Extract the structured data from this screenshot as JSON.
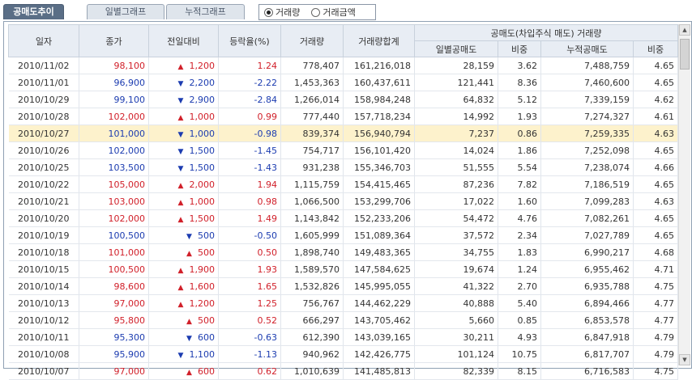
{
  "tabs": [
    {
      "label": "공매도추이",
      "active": true
    },
    {
      "label": "일별그래프",
      "active": false
    },
    {
      "label": "누적그래프",
      "active": false
    }
  ],
  "radio": [
    {
      "label": "거래량",
      "checked": true
    },
    {
      "label": "거래금액",
      "checked": false
    }
  ],
  "headers": {
    "date": "일자",
    "close": "종가",
    "change": "전일대비",
    "rate": "등락율(%)",
    "volume": "거래량",
    "volume_sum": "거래량합계",
    "short_group": "공매도(차입주식 매도) 거래량",
    "daily_short": "일별공매도",
    "ratio1": "비중",
    "cum_short": "누적공매도",
    "ratio2": "비중"
  },
  "colors": {
    "up": "#d1202a",
    "down": "#1c3cb0",
    "selected_row": "#fdf2cc",
    "header_bg": "#e8edf4"
  },
  "rows": [
    {
      "date": "2010/11/02",
      "close": "98,100",
      "dir": "up",
      "change": "1,200",
      "rate": "1.24",
      "volume": "778,407",
      "volume_sum": "161,216,018",
      "daily_short": "28,159",
      "ratio1": "3.62",
      "cum_short": "7,488,759",
      "ratio2": "4.65"
    },
    {
      "date": "2010/11/01",
      "close": "96,900",
      "dir": "down",
      "change": "2,200",
      "rate": "-2.22",
      "volume": "1,453,363",
      "volume_sum": "160,437,611",
      "daily_short": "121,441",
      "ratio1": "8.36",
      "cum_short": "7,460,600",
      "ratio2": "4.65"
    },
    {
      "date": "2010/10/29",
      "close": "99,100",
      "dir": "down",
      "change": "2,900",
      "rate": "-2.84",
      "volume": "1,266,014",
      "volume_sum": "158,984,248",
      "daily_short": "64,832",
      "ratio1": "5.12",
      "cum_short": "7,339,159",
      "ratio2": "4.62"
    },
    {
      "date": "2010/10/28",
      "close": "102,000",
      "dir": "up",
      "change": "1,000",
      "rate": "0.99",
      "volume": "777,440",
      "volume_sum": "157,718,234",
      "daily_short": "14,992",
      "ratio1": "1.93",
      "cum_short": "7,274,327",
      "ratio2": "4.61"
    },
    {
      "date": "2010/10/27",
      "close": "101,000",
      "dir": "down",
      "change": "1,000",
      "rate": "-0.98",
      "volume": "839,374",
      "volume_sum": "156,940,794",
      "daily_short": "7,237",
      "ratio1": "0.86",
      "cum_short": "7,259,335",
      "ratio2": "4.63",
      "selected": true
    },
    {
      "date": "2010/10/26",
      "close": "102,000",
      "dir": "down",
      "change": "1,500",
      "rate": "-1.45",
      "volume": "754,717",
      "volume_sum": "156,101,420",
      "daily_short": "14,024",
      "ratio1": "1.86",
      "cum_short": "7,252,098",
      "ratio2": "4.65"
    },
    {
      "date": "2010/10/25",
      "close": "103,500",
      "dir": "down",
      "change": "1,500",
      "rate": "-1.43",
      "volume": "931,238",
      "volume_sum": "155,346,703",
      "daily_short": "51,555",
      "ratio1": "5.54",
      "cum_short": "7,238,074",
      "ratio2": "4.66"
    },
    {
      "date": "2010/10/22",
      "close": "105,000",
      "dir": "up",
      "change": "2,000",
      "rate": "1.94",
      "volume": "1,115,759",
      "volume_sum": "154,415,465",
      "daily_short": "87,236",
      "ratio1": "7.82",
      "cum_short": "7,186,519",
      "ratio2": "4.65"
    },
    {
      "date": "2010/10/21",
      "close": "103,000",
      "dir": "up",
      "change": "1,000",
      "rate": "0.98",
      "volume": "1,066,500",
      "volume_sum": "153,299,706",
      "daily_short": "17,022",
      "ratio1": "1.60",
      "cum_short": "7,099,283",
      "ratio2": "4.63"
    },
    {
      "date": "2010/10/20",
      "close": "102,000",
      "dir": "up",
      "change": "1,500",
      "rate": "1.49",
      "volume": "1,143,842",
      "volume_sum": "152,233,206",
      "daily_short": "54,472",
      "ratio1": "4.76",
      "cum_short": "7,082,261",
      "ratio2": "4.65"
    },
    {
      "date": "2010/10/19",
      "close": "100,500",
      "dir": "down",
      "change": "500",
      "rate": "-0.50",
      "volume": "1,605,999",
      "volume_sum": "151,089,364",
      "daily_short": "37,572",
      "ratio1": "2.34",
      "cum_short": "7,027,789",
      "ratio2": "4.65"
    },
    {
      "date": "2010/10/18",
      "close": "101,000",
      "dir": "up",
      "change": "500",
      "rate": "0.50",
      "volume": "1,898,740",
      "volume_sum": "149,483,365",
      "daily_short": "34,755",
      "ratio1": "1.83",
      "cum_short": "6,990,217",
      "ratio2": "4.68"
    },
    {
      "date": "2010/10/15",
      "close": "100,500",
      "dir": "up",
      "change": "1,900",
      "rate": "1.93",
      "volume": "1,589,570",
      "volume_sum": "147,584,625",
      "daily_short": "19,674",
      "ratio1": "1.24",
      "cum_short": "6,955,462",
      "ratio2": "4.71"
    },
    {
      "date": "2010/10/14",
      "close": "98,600",
      "dir": "up",
      "change": "1,600",
      "rate": "1.65",
      "volume": "1,532,826",
      "volume_sum": "145,995,055",
      "daily_short": "41,322",
      "ratio1": "2.70",
      "cum_short": "6,935,788",
      "ratio2": "4.75"
    },
    {
      "date": "2010/10/13",
      "close": "97,000",
      "dir": "up",
      "change": "1,200",
      "rate": "1.25",
      "volume": "756,767",
      "volume_sum": "144,462,229",
      "daily_short": "40,888",
      "ratio1": "5.40",
      "cum_short": "6,894,466",
      "ratio2": "4.77"
    },
    {
      "date": "2010/10/12",
      "close": "95,800",
      "dir": "up",
      "change": "500",
      "rate": "0.52",
      "volume": "666,297",
      "volume_sum": "143,705,462",
      "daily_short": "5,660",
      "ratio1": "0.85",
      "cum_short": "6,853,578",
      "ratio2": "4.77"
    },
    {
      "date": "2010/10/11",
      "close": "95,300",
      "dir": "down",
      "change": "600",
      "rate": "-0.63",
      "volume": "612,390",
      "volume_sum": "143,039,165",
      "daily_short": "30,211",
      "ratio1": "4.93",
      "cum_short": "6,847,918",
      "ratio2": "4.79"
    },
    {
      "date": "2010/10/08",
      "close": "95,900",
      "dir": "down",
      "change": "1,100",
      "rate": "-1.13",
      "volume": "940,962",
      "volume_sum": "142,426,775",
      "daily_short": "101,124",
      "ratio1": "10.75",
      "cum_short": "6,817,707",
      "ratio2": "4.79"
    },
    {
      "date": "2010/10/07",
      "close": "97,000",
      "dir": "up",
      "change": "600",
      "rate": "0.62",
      "volume": "1,010,639",
      "volume_sum": "141,485,813",
      "daily_short": "82,339",
      "ratio1": "8.15",
      "cum_short": "6,716,583",
      "ratio2": "4.75"
    }
  ],
  "icons": {
    "up": "triangle-up",
    "down": "triangle-down",
    "scroll_up": "scroll-up",
    "scroll_down": "scroll-down"
  }
}
